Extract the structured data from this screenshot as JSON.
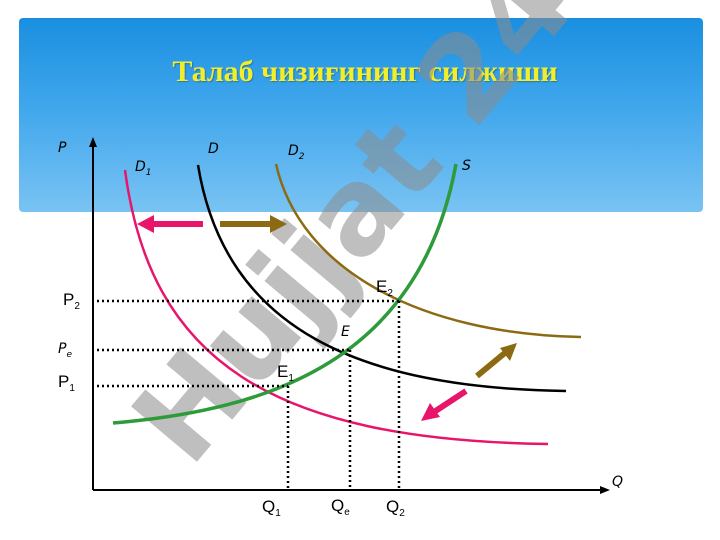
{
  "slide": {
    "title": "Талаб чизиғининг силжиши",
    "watermark": "Hujjat 24",
    "banner_color": "#2a97e6",
    "title_color": "#f3ee2a"
  },
  "axes": {
    "y_label": "P",
    "x_label": "Q",
    "p_ticks": [
      {
        "id": "p2",
        "base": "P",
        "sub": "2"
      },
      {
        "id": "pe",
        "base": "P",
        "sub": "e"
      },
      {
        "id": "p1",
        "base": "P",
        "sub": "1"
      }
    ],
    "q_ticks": [
      {
        "id": "q1",
        "base": "Q",
        "sub": "1"
      },
      {
        "id": "qe",
        "base": "Q",
        "sub": "e"
      },
      {
        "id": "q2",
        "base": "Q",
        "sub": "2"
      }
    ]
  },
  "curves": {
    "d1": {
      "base": "D",
      "sub": "1",
      "color": "#e8156b"
    },
    "d": {
      "base": "D",
      "sub": "",
      "color": "#000000"
    },
    "d2": {
      "base": "D",
      "sub": "2",
      "color": "#8c6a12"
    },
    "s": {
      "base": "S",
      "sub": "",
      "color": "#2e9b3a"
    }
  },
  "points": {
    "e1": {
      "base": "E",
      "sub": "1"
    },
    "e": {
      "base": "E",
      "sub": ""
    },
    "e2": {
      "base": "E",
      "sub": "2"
    }
  },
  "arrows": {
    "left_color": "#e8156b",
    "right_color": "#8c6a12"
  }
}
